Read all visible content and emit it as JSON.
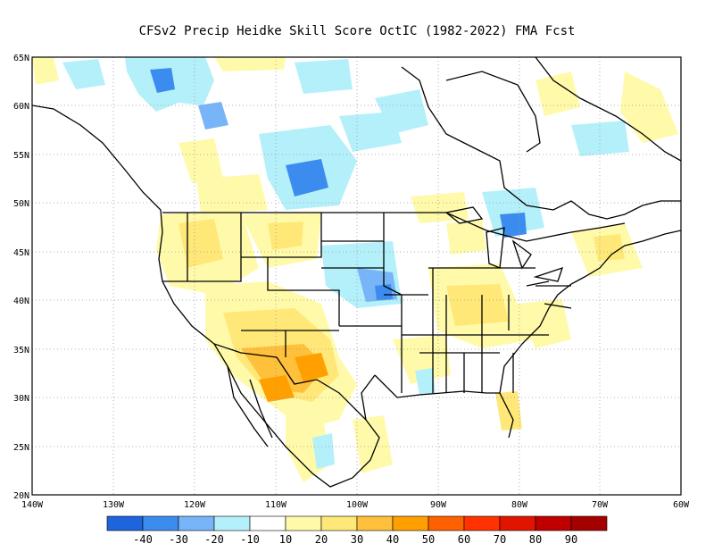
{
  "title": "CFSv2 Precip Heidke Skill Score OctIC (1982-2022) FMA Fcst",
  "lat_labels": [
    "65N",
    "60N",
    "55N",
    "50N",
    "45N",
    "40N",
    "35N",
    "30N",
    "25N",
    "20N"
  ],
  "lon_labels": [
    "140W",
    "130W",
    "120W",
    "110W",
    "100W",
    "90W",
    "80W",
    "70W",
    "60W"
  ],
  "map_extent": {
    "lon": [
      -140,
      -60
    ],
    "lat": [
      20,
      65
    ]
  },
  "colorbar": {
    "colors": [
      "#1e64dc",
      "#3c8cf0",
      "#78b4f8",
      "#b4f0fa",
      "#ffffff",
      "#fffaaa",
      "#ffe878",
      "#ffc03c",
      "#ffa000",
      "#ff6000",
      "#ff3200",
      "#e11400",
      "#c00000",
      "#a50000"
    ],
    "labels": [
      "-40",
      "-30",
      "-20",
      "-10",
      "10",
      "20",
      "30",
      "40",
      "50",
      "60",
      "70",
      "80",
      "90"
    ]
  },
  "skill_regions": [
    {
      "name": "southwest-desert",
      "category": "20"
    },
    {
      "name": "texas-new-mexico-border",
      "category": "40"
    },
    {
      "name": "northern-plains",
      "category": "-10"
    },
    {
      "name": "british-columbia",
      "category": "-20"
    }
  ]
}
